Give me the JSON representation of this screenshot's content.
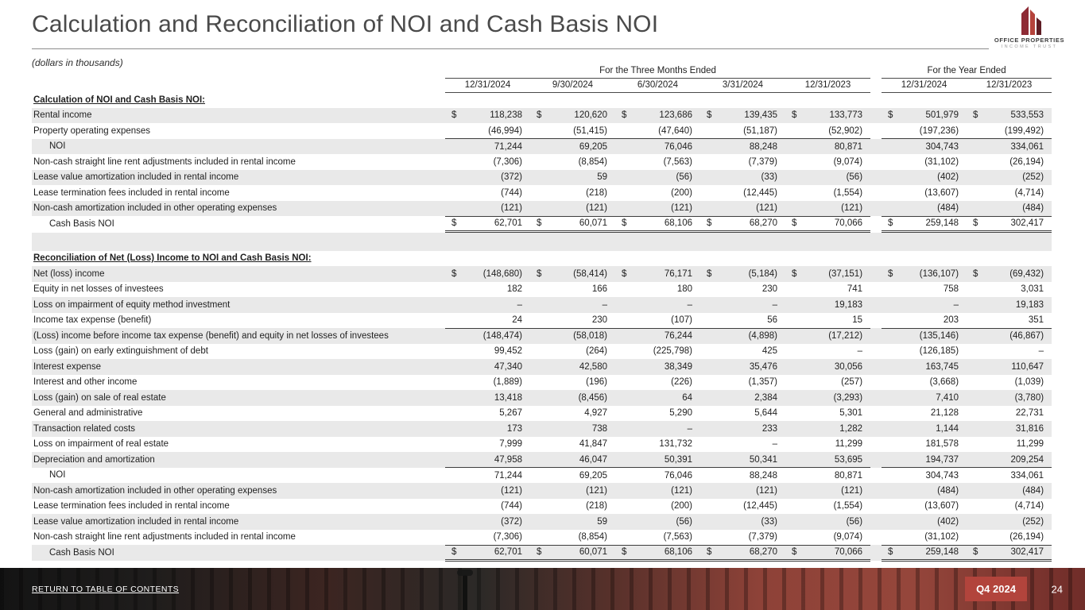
{
  "meta": {
    "title": "Calculation and Reconciliation of NOI and Cash Basis NOI",
    "units_note": "(dollars in thousands)"
  },
  "logo": {
    "name1": "OFFICE PROPERTIES",
    "name2": "INCOME TRUST"
  },
  "footer": {
    "return_link": "RETURN TO TABLE OF CONTENTS",
    "quarter_badge": "Q4 2024",
    "page_number": "24"
  },
  "colors": {
    "accent_red": "#b2443c",
    "logo_red_dark": "#5f1d24",
    "logo_red_mid": "#8e2b35",
    "logo_red_light": "#b5433b",
    "stripe_gray": "#e9e9e9"
  },
  "table": {
    "group_headers": [
      {
        "label": "For the Three Months Ended",
        "span": 5
      },
      {
        "label": "For the Year Ended",
        "span": 2
      }
    ],
    "columns": [
      "12/31/2024",
      "9/30/2024",
      "6/30/2024",
      "3/31/2024",
      "12/31/2023",
      "12/31/2024",
      "12/31/2023"
    ],
    "sections": [
      {
        "heading": "Calculation of NOI and Cash Basis NOI:",
        "rows": [
          {
            "label": "Rental income",
            "dollar": true,
            "indent": 0,
            "rule": "",
            "values": [
              "118,238",
              "120,620",
              "123,686",
              "139,435",
              "133,773",
              "501,979",
              "533,553"
            ]
          },
          {
            "label": "Property operating expenses",
            "dollar": false,
            "indent": 0,
            "rule": "bottom",
            "values": [
              "(46,994)",
              "(51,415)",
              "(47,640)",
              "(51,187)",
              "(52,902)",
              "(197,236)",
              "(199,492)"
            ]
          },
          {
            "label": "NOI",
            "dollar": false,
            "indent": 1,
            "rule": "",
            "values": [
              "71,244",
              "69,205",
              "76,046",
              "88,248",
              "80,871",
              "304,743",
              "334,061"
            ]
          },
          {
            "label": "Non-cash straight line rent adjustments included in rental income",
            "dollar": false,
            "indent": 0,
            "rule": "",
            "values": [
              "(7,306)",
              "(8,854)",
              "(7,563)",
              "(7,379)",
              "(9,074)",
              "(31,102)",
              "(26,194)"
            ]
          },
          {
            "label": "Lease value amortization included in rental income",
            "dollar": false,
            "indent": 0,
            "rule": "",
            "values": [
              "(372)",
              "59",
              "(56)",
              "(33)",
              "(56)",
              "(402)",
              "(252)"
            ]
          },
          {
            "label": "Lease termination fees included in rental income",
            "dollar": false,
            "indent": 0,
            "rule": "",
            "values": [
              "(744)",
              "(218)",
              "(200)",
              "(12,445)",
              "(1,554)",
              "(13,607)",
              "(4,714)"
            ]
          },
          {
            "label": "Non-cash amortization included in other operating expenses",
            "dollar": false,
            "indent": 0,
            "rule": "bottom",
            "values": [
              "(121)",
              "(121)",
              "(121)",
              "(121)",
              "(121)",
              "(484)",
              "(484)"
            ]
          },
          {
            "label": "Cash Basis NOI",
            "dollar": true,
            "indent": 1,
            "rule": "double",
            "values": [
              "62,701",
              "60,071",
              "68,106",
              "68,270",
              "70,066",
              "259,148",
              "302,417"
            ]
          }
        ]
      },
      {
        "heading": "Reconciliation of Net (Loss) Income to NOI and Cash Basis NOI:",
        "rows": [
          {
            "label": "Net (loss) income",
            "dollar": true,
            "indent": 0,
            "rule": "",
            "values": [
              "(148,680)",
              "(58,414)",
              "76,171",
              "(5,184)",
              "(37,151)",
              "(136,107)",
              "(69,432)"
            ]
          },
          {
            "label": "Equity in net losses of investees",
            "dollar": false,
            "indent": 0,
            "rule": "",
            "values": [
              "182",
              "166",
              "180",
              "230",
              "741",
              "758",
              "3,031"
            ]
          },
          {
            "label": "Loss on impairment of equity method investment",
            "dollar": false,
            "indent": 0,
            "rule": "",
            "values": [
              "–",
              "–",
              "–",
              "–",
              "19,183",
              "–",
              "19,183"
            ]
          },
          {
            "label": "Income tax expense (benefit)",
            "dollar": false,
            "indent": 0,
            "rule": "bottom",
            "values": [
              "24",
              "230",
              "(107)",
              "56",
              "15",
              "203",
              "351"
            ]
          },
          {
            "label": "(Loss) income before income tax expense (benefit) and equity in net losses of investees",
            "dollar": false,
            "indent": 0,
            "rule": "",
            "values": [
              "(148,474)",
              "(58,018)",
              "76,244",
              "(4,898)",
              "(17,212)",
              "(135,146)",
              "(46,867)"
            ]
          },
          {
            "label": "Loss (gain) on early extinguishment of debt",
            "dollar": false,
            "indent": 0,
            "rule": "",
            "values": [
              "99,452",
              "(264)",
              "(225,798)",
              "425",
              "–",
              "(126,185)",
              "–"
            ]
          },
          {
            "label": "Interest expense",
            "dollar": false,
            "indent": 0,
            "rule": "",
            "values": [
              "47,340",
              "42,580",
              "38,349",
              "35,476",
              "30,056",
              "163,745",
              "110,647"
            ]
          },
          {
            "label": "Interest and other income",
            "dollar": false,
            "indent": 0,
            "rule": "",
            "values": [
              "(1,889)",
              "(196)",
              "(226)",
              "(1,357)",
              "(257)",
              "(3,668)",
              "(1,039)"
            ]
          },
          {
            "label": "Loss (gain) on sale of real estate",
            "dollar": false,
            "indent": 0,
            "rule": "",
            "values": [
              "13,418",
              "(8,456)",
              "64",
              "2,384",
              "(3,293)",
              "7,410",
              "(3,780)"
            ]
          },
          {
            "label": "General and administrative",
            "dollar": false,
            "indent": 0,
            "rule": "",
            "values": [
              "5,267",
              "4,927",
              "5,290",
              "5,644",
              "5,301",
              "21,128",
              "22,731"
            ]
          },
          {
            "label": "Transaction related costs",
            "dollar": false,
            "indent": 0,
            "rule": "",
            "values": [
              "173",
              "738",
              "–",
              "233",
              "1,282",
              "1,144",
              "31,816"
            ]
          },
          {
            "label": "Loss on impairment of real estate",
            "dollar": false,
            "indent": 0,
            "rule": "",
            "values": [
              "7,999",
              "41,847",
              "131,732",
              "–",
              "11,299",
              "181,578",
              "11,299"
            ]
          },
          {
            "label": "Depreciation and amortization",
            "dollar": false,
            "indent": 0,
            "rule": "bottom",
            "values": [
              "47,958",
              "46,047",
              "50,391",
              "50,341",
              "53,695",
              "194,737",
              "209,254"
            ]
          },
          {
            "label": "NOI",
            "dollar": false,
            "indent": 1,
            "rule": "",
            "values": [
              "71,244",
              "69,205",
              "76,046",
              "88,248",
              "80,871",
              "304,743",
              "334,061"
            ]
          },
          {
            "label": "Non-cash amortization included in other operating expenses",
            "dollar": false,
            "indent": 0,
            "rule": "",
            "values": [
              "(121)",
              "(121)",
              "(121)",
              "(121)",
              "(121)",
              "(484)",
              "(484)"
            ]
          },
          {
            "label": "Lease termination fees included in rental income",
            "dollar": false,
            "indent": 0,
            "rule": "",
            "values": [
              "(744)",
              "(218)",
              "(200)",
              "(12,445)",
              "(1,554)",
              "(13,607)",
              "(4,714)"
            ]
          },
          {
            "label": "Lease value amortization included in rental income",
            "dollar": false,
            "indent": 0,
            "rule": "",
            "values": [
              "(372)",
              "59",
              "(56)",
              "(33)",
              "(56)",
              "(402)",
              "(252)"
            ]
          },
          {
            "label": "Non-cash straight line rent adjustments included in rental income",
            "dollar": false,
            "indent": 0,
            "rule": "bottom",
            "values": [
              "(7,306)",
              "(8,854)",
              "(7,563)",
              "(7,379)",
              "(9,074)",
              "(31,102)",
              "(26,194)"
            ]
          },
          {
            "label": "Cash Basis NOI",
            "dollar": true,
            "indent": 1,
            "rule": "double",
            "values": [
              "62,701",
              "60,071",
              "68,106",
              "68,270",
              "70,066",
              "259,148",
              "302,417"
            ]
          }
        ]
      }
    ]
  }
}
